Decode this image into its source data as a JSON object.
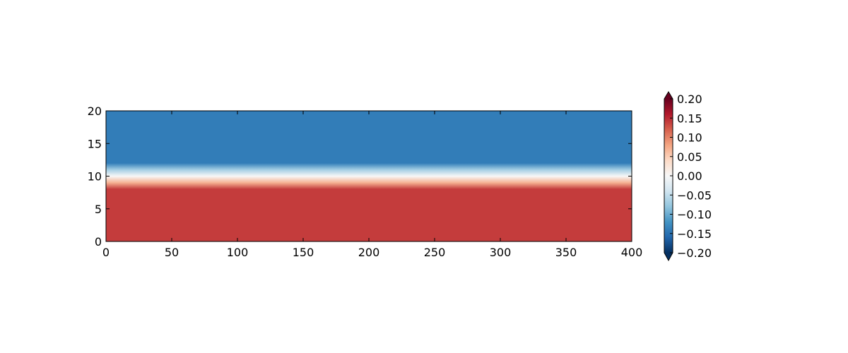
{
  "chart_data": {
    "type": "heatmap",
    "title": "",
    "xlabel": "",
    "ylabel": "",
    "xlim": [
      0,
      400
    ],
    "ylim": [
      0,
      20
    ],
    "x_ticks": [
      0,
      50,
      100,
      150,
      200,
      250,
      300,
      350,
      400
    ],
    "x_tick_labels": [
      "0",
      "50",
      "100",
      "150",
      "200",
      "250",
      "300",
      "350",
      "400"
    ],
    "y_ticks": [
      0,
      5,
      10,
      15,
      20
    ],
    "y_tick_labels": [
      "0",
      "5",
      "10",
      "15",
      "20"
    ],
    "grid": false,
    "field_profile": {
      "description_axis": "y",
      "y": [
        0,
        8,
        9,
        10,
        11,
        12,
        20
      ],
      "value": [
        0.14,
        0.14,
        0.07,
        0.0,
        -0.07,
        -0.14,
        -0.14
      ]
    },
    "colorbar": {
      "colormap": "RdBu_r",
      "vmin": -0.2,
      "vmax": 0.2,
      "extend": "both",
      "ticks": [
        0.2,
        0.15,
        0.1,
        0.05,
        0.0,
        -0.05,
        -0.1,
        -0.15,
        -0.2
      ],
      "tick_labels": [
        "0.20",
        "0.15",
        "0.10",
        "0.05",
        "0.00",
        "−0.05",
        "−0.10",
        "−0.15",
        "−0.20"
      ]
    }
  }
}
